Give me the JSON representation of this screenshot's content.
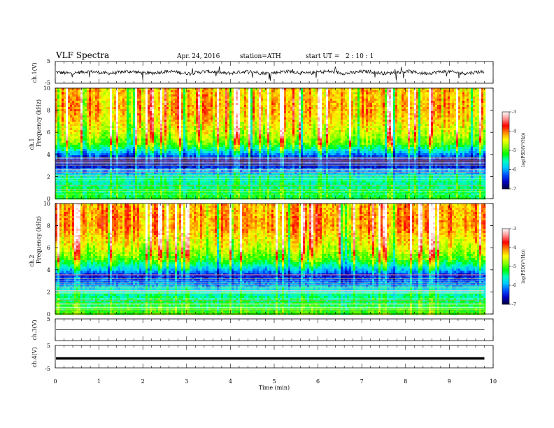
{
  "header": {
    "title": "VLF Spectra",
    "date": "Apr. 24, 2016",
    "station": "station=ATH",
    "start": "start UT =   2 : 10 : 1"
  },
  "panels": {
    "ch1_wave": {
      "ylabel": "ch.1(V)",
      "ticks": [
        "5",
        "-5"
      ]
    },
    "ch1_spec": {
      "ylabel_ch": "ch.1",
      "ylabel_q": "Frequency (kHz)",
      "ticks": [
        "10",
        "8",
        "6",
        "4",
        "2",
        "0"
      ]
    },
    "ch2_spec": {
      "ylabel_ch": "ch.2",
      "ylabel_q": "Frequency (kHz)",
      "ticks": [
        "10",
        "8",
        "6",
        "4",
        "2",
        "0"
      ]
    },
    "ch3_wave": {
      "ylabel": "ch.3(V)",
      "ticks": [
        "5"
      ]
    },
    "ch4_wave": {
      "ylabel": "ch.4(V)",
      "ticks": [
        "5",
        "-5"
      ]
    }
  },
  "colorbar": {
    "label": "log(PSD(V²/Hz))",
    "ticks": [
      "-3",
      "-4",
      "-5",
      "-6",
      "-7"
    ],
    "colors": [
      "#ffffff",
      "#ff9090",
      "#ff0000",
      "#ff8c00",
      "#ffff00",
      "#90ff00",
      "#00ff00",
      "#00ffc0",
      "#00c8ff",
      "#0050ff",
      "#0000c0",
      "#000040"
    ]
  },
  "xaxis": {
    "label": "Time (min)",
    "ticks": [
      "0",
      "1",
      "2",
      "3",
      "4",
      "5",
      "6",
      "7",
      "8",
      "9",
      "10"
    ],
    "range": [
      0,
      10
    ]
  },
  "chart_data": [
    {
      "type": "line",
      "name": "ch.1 waveform",
      "ylabel": "ch.1(V)",
      "xlabel": "Time (min)",
      "xlim": [
        0,
        10
      ],
      "ylim": [
        -5,
        5
      ],
      "baseline": 0,
      "spike_range": [
        -4,
        3
      ],
      "data_end_min": 9.8
    },
    {
      "type": "heatmap",
      "name": "ch.1 spectrogram",
      "ylabel": "Frequency (kHz)",
      "xlim": [
        0,
        10
      ],
      "ylim": [
        0,
        10
      ],
      "colorscale": "log(PSD(V²/Hz))",
      "crange": [
        -7,
        -3
      ],
      "profile_freq_khz": [
        0,
        0.5,
        1,
        2,
        3,
        3.5,
        4,
        4.5,
        5,
        6,
        8,
        10
      ],
      "profile_logpsd": [
        -5.2,
        -5.3,
        -5.4,
        -5.6,
        -6.6,
        -6.7,
        -6.1,
        -5.5,
        -5.0,
        -4.6,
        -4.2,
        -4.3
      ]
    },
    {
      "type": "heatmap",
      "name": "ch.2 spectrogram",
      "ylabel": "Frequency (kHz)",
      "xlim": [
        0,
        10
      ],
      "ylim": [
        0,
        10
      ],
      "colorscale": "log(PSD(V²/Hz))",
      "crange": [
        -7,
        -3
      ],
      "profile_freq_khz": [
        0,
        0.5,
        1,
        2,
        3,
        3.5,
        4,
        4.5,
        5,
        6,
        8,
        10
      ],
      "profile_logpsd": [
        -5.0,
        -5.2,
        -5.3,
        -5.6,
        -6.3,
        -6.5,
        -5.9,
        -5.4,
        -5.0,
        -4.6,
        -4.1,
        -4.2
      ]
    },
    {
      "type": "line",
      "name": "ch.3 waveform",
      "ylabel": "ch.3(V)",
      "xlim": [
        0,
        10
      ],
      "ylim": [
        -5,
        5
      ],
      "baseline": 0,
      "data_end_min": 9.8
    },
    {
      "type": "line",
      "name": "ch.4 waveform",
      "ylabel": "ch.4(V)",
      "xlim": [
        0,
        10
      ],
      "ylim": [
        -5,
        5
      ],
      "baseline": -0.8,
      "data_end_min": 9.8
    }
  ]
}
